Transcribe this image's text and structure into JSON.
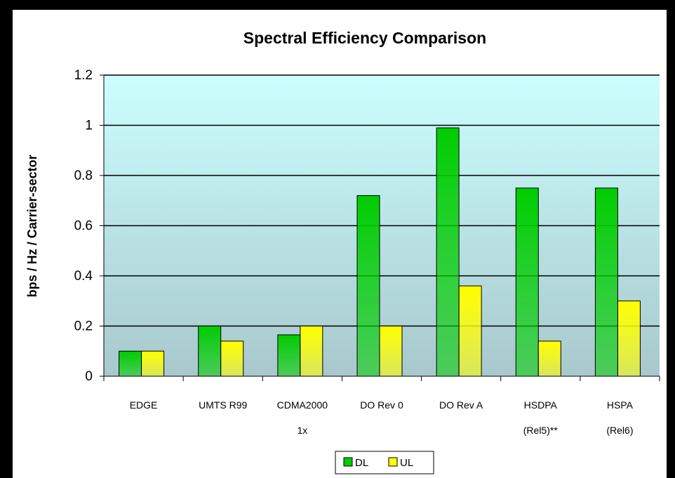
{
  "chart_data": {
    "type": "bar",
    "title": "Spectral Efficiency Comparison",
    "ylabel": "bps / Hz / Carrier-sector",
    "categories": [
      [
        "EDGE"
      ],
      [
        "UMTS R99"
      ],
      [
        "CDMA2000",
        "1x"
      ],
      [
        "DO Rev 0"
      ],
      [
        "DO Rev A"
      ],
      [
        "HSDPA",
        "(Rel5)**"
      ],
      [
        "HSPA",
        "(Rel6)"
      ]
    ],
    "series": [
      {
        "name": "DL",
        "color": "#00cc00",
        "values": [
          0.1,
          0.2,
          0.165,
          0.72,
          0.99,
          0.75,
          0.75
        ]
      },
      {
        "name": "UL",
        "color": "#ffff00",
        "values": [
          0.1,
          0.14,
          0.2,
          0.2,
          0.36,
          0.14,
          0.3
        ]
      }
    ],
    "ylim": [
      0,
      1.2
    ],
    "yticks": [
      0,
      0.2,
      0.4,
      0.6,
      0.8,
      1,
      1.2
    ],
    "grid": true,
    "legend": "bottom"
  }
}
